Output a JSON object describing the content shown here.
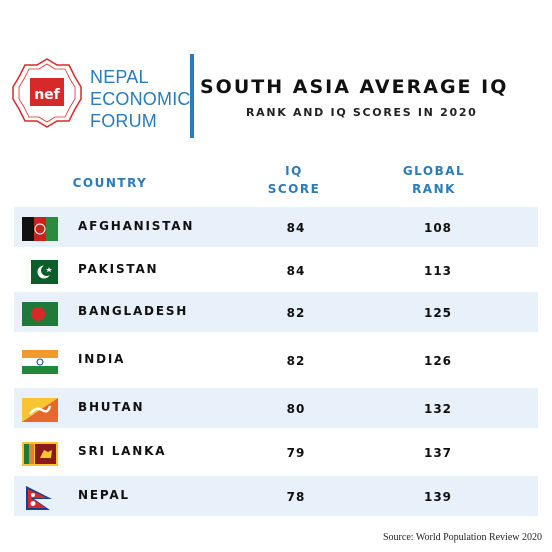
{
  "header": {
    "org_lines": [
      "NEPAL",
      "ECONOMIC",
      "FORUM"
    ],
    "logo_text": "nef",
    "title": "SOUTH ASIA AVERAGE IQ",
    "subtitle": "RANK AND IQ SCORES IN 2020"
  },
  "colors": {
    "accent": "#2b7bb9",
    "row_shade": "#e8f0fa",
    "logo_red": "#d62a2a"
  },
  "columns": {
    "country": "COUNTRY",
    "iq": [
      "IQ",
      "SCORE"
    ],
    "rank": [
      "GLOBAL",
      "RANK"
    ]
  },
  "chart_data": {
    "type": "table",
    "title": "SOUTH ASIA AVERAGE IQ",
    "subtitle": "RANK AND IQ SCORES IN 2020",
    "columns": [
      "COUNTRY",
      "IQ SCORE",
      "GLOBAL RANK"
    ],
    "rows": [
      {
        "country": "AFGHANISTAN",
        "flag": "afghanistan-flag",
        "iq": 84,
        "rank": 108
      },
      {
        "country": "PAKISTAN",
        "flag": "pakistan-flag",
        "iq": 84,
        "rank": 113
      },
      {
        "country": "BANGLADESH",
        "flag": "bangladesh-flag",
        "iq": 82,
        "rank": 125
      },
      {
        "country": "INDIA",
        "flag": "india-flag",
        "iq": 82,
        "rank": 126
      },
      {
        "country": "BHUTAN",
        "flag": "bhutan-flag",
        "iq": 80,
        "rank": 132
      },
      {
        "country": "SRI LANKA",
        "flag": "sri-lanka-flag",
        "iq": 79,
        "rank": 137
      },
      {
        "country": "NEPAL",
        "flag": "nepal-flag",
        "iq": 78,
        "rank": 139
      }
    ]
  },
  "source": "Source: World Population Review 2020"
}
